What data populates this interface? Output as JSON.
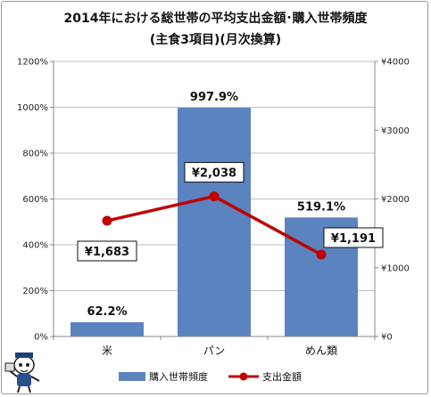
{
  "title_line1": "2014年における総世帯の平均支出金額･購入世帯頻度",
  "title_line2": "(主食3項目)(月次換算)",
  "chart_data": {
    "type": "bar",
    "categories": [
      "米",
      "パン",
      "めん類"
    ],
    "series": [
      {
        "name": "購入世帯頻度",
        "type": "bar",
        "axis": "left",
        "values": [
          62.2,
          997.9,
          519.1
        ],
        "labels": [
          "62.2%",
          "997.9%",
          "519.1%"
        ],
        "color": "#5b83c0"
      },
      {
        "name": "支出金額",
        "type": "line",
        "axis": "right",
        "values": [
          1683,
          2038,
          1191
        ],
        "labels": [
          "¥1,683",
          "¥2,038",
          "¥1,191"
        ],
        "color": "#c00000"
      }
    ],
    "y_left": {
      "lim": [
        0,
        1200
      ],
      "ticks": [
        0,
        200,
        400,
        600,
        800,
        1000,
        1200
      ],
      "tick_labels": [
        "0%",
        "200%",
        "400%",
        "600%",
        "800%",
        "1000%",
        "1200%"
      ]
    },
    "y_right": {
      "lim": [
        0,
        4000
      ],
      "ticks": [
        0,
        1000,
        2000,
        3000,
        4000
      ],
      "tick_labels": [
        "¥0",
        "¥1000",
        "¥2000",
        "¥3000",
        "¥4000"
      ]
    },
    "grid": true,
    "legend": "bottom"
  }
}
